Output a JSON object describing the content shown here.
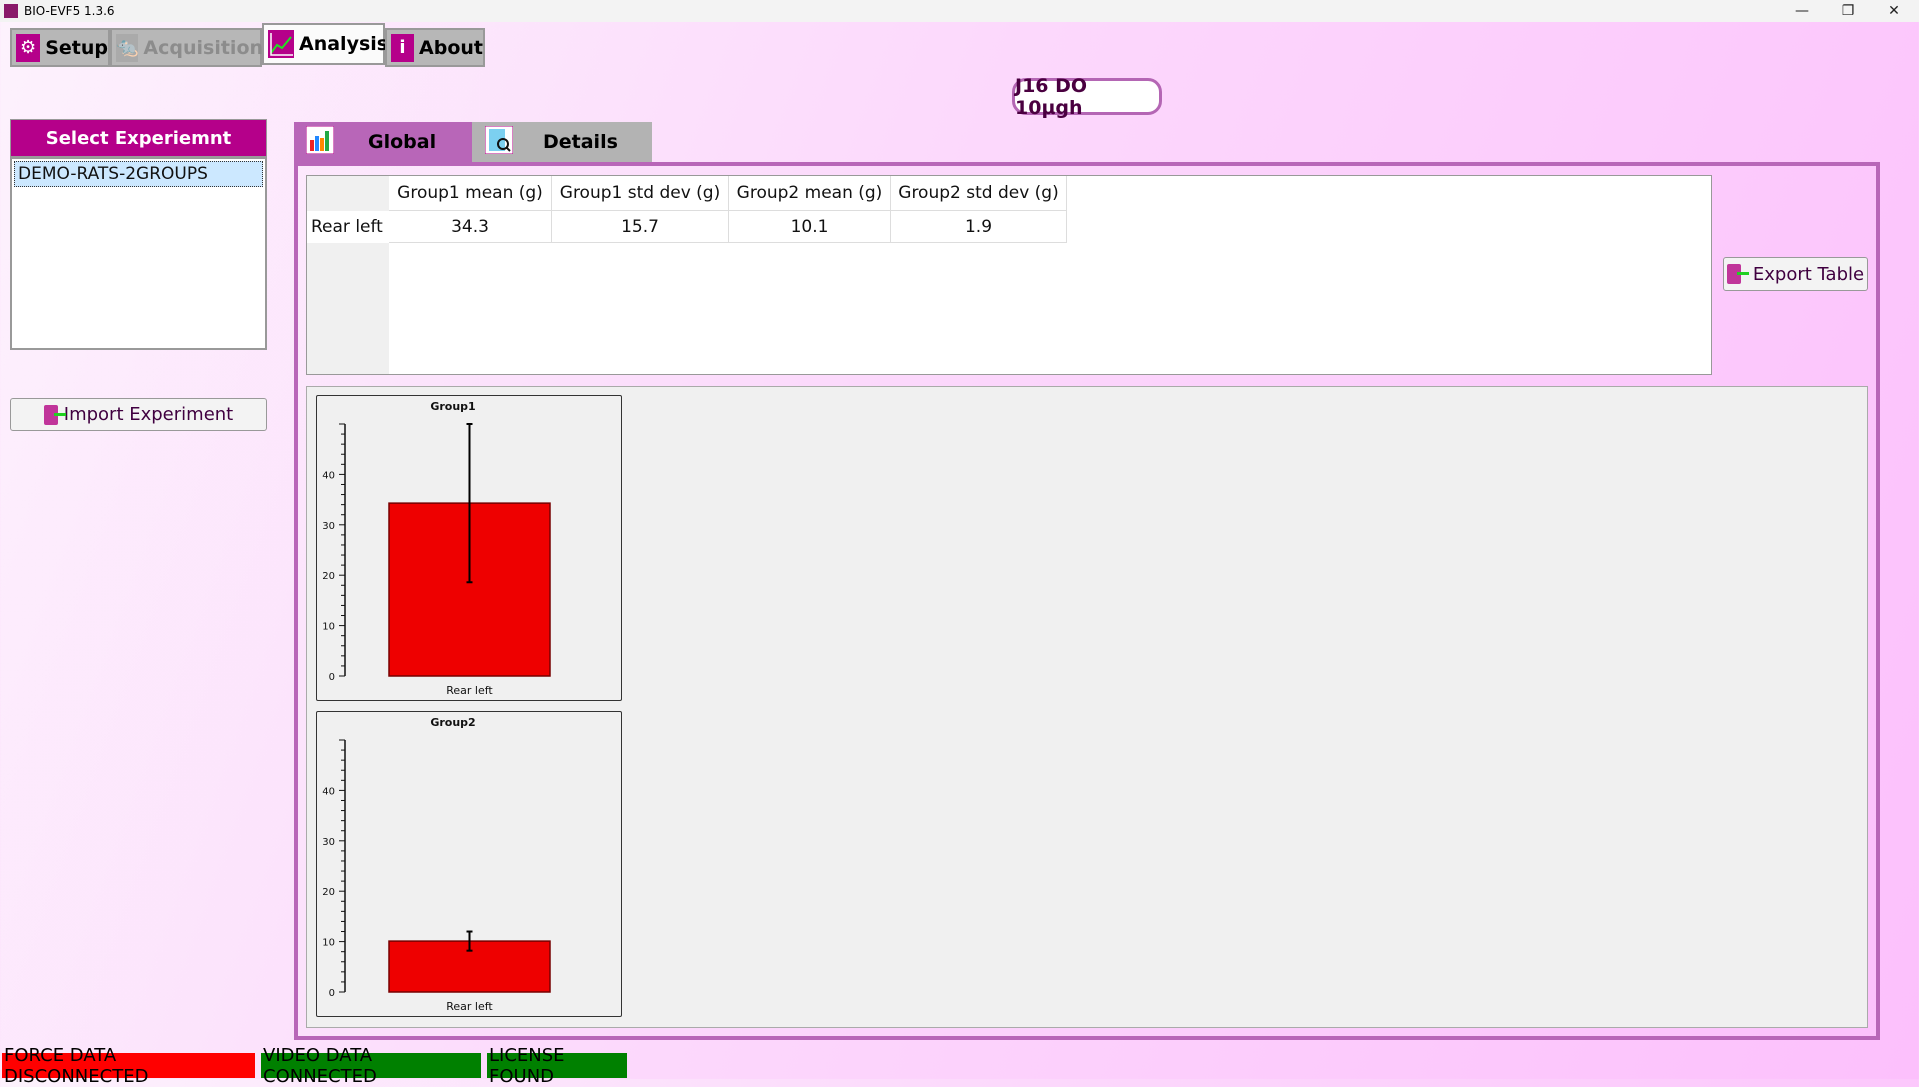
{
  "window": {
    "title": "BIO-EVF5 1.3.6",
    "minimize": "—",
    "restore": "❐",
    "close": "✕"
  },
  "main_tabs": [
    {
      "label": "Setup",
      "icon": "gear-icon",
      "state": "normal"
    },
    {
      "label": "Acquisition",
      "icon": "rat-icon",
      "state": "disabled"
    },
    {
      "label": "Analysis",
      "icon": "line-chart-icon",
      "state": "active"
    },
    {
      "label": "About",
      "icon": "info-icon",
      "state": "normal"
    }
  ],
  "session_badge": "J16 DO 10µgh",
  "experiment_panel": {
    "header": "Select Experiemnt",
    "items": [
      "DEMO-RATS-2GROUPS"
    ],
    "selected": "DEMO-RATS-2GROUPS",
    "import_label": "Import Experiment"
  },
  "sub_tabs": [
    {
      "label": "Global",
      "icon": "bar-chart-icon",
      "active": true
    },
    {
      "label": "Details",
      "icon": "document-search-icon",
      "active": false
    }
  ],
  "table": {
    "columns": [
      "Group1 mean (g)",
      "Group1 std dev (g)",
      "Group2 mean (g)",
      "Group2 std dev (g)"
    ],
    "rows": [
      {
        "label": "Rear left",
        "values": [
          "34.3",
          "15.7",
          "10.1",
          "1.9"
        ]
      }
    ]
  },
  "export_label": "Export Table",
  "chart_data": [
    {
      "type": "bar",
      "title": "Group1",
      "categories": [
        "Rear left"
      ],
      "values": [
        34.3
      ],
      "errors": [
        15.7
      ],
      "ylim": [
        0,
        50
      ],
      "yticks": [
        0,
        10,
        20,
        30,
        40
      ],
      "color": "#ee0000"
    },
    {
      "type": "bar",
      "title": "Group2",
      "categories": [
        "Rear left"
      ],
      "values": [
        10.1
      ],
      "errors": [
        1.9
      ],
      "ylim": [
        0,
        50
      ],
      "yticks": [
        0,
        10,
        20,
        30,
        40
      ],
      "color": "#ee0000"
    }
  ],
  "status": [
    {
      "label": "FORCE DATA DISCONNECTED",
      "color": "#ff0000"
    },
    {
      "label": "VIDEO DATA CONNECTED",
      "color": "#008000"
    },
    {
      "label": "LICENSE FOUND",
      "color": "#008000"
    }
  ]
}
